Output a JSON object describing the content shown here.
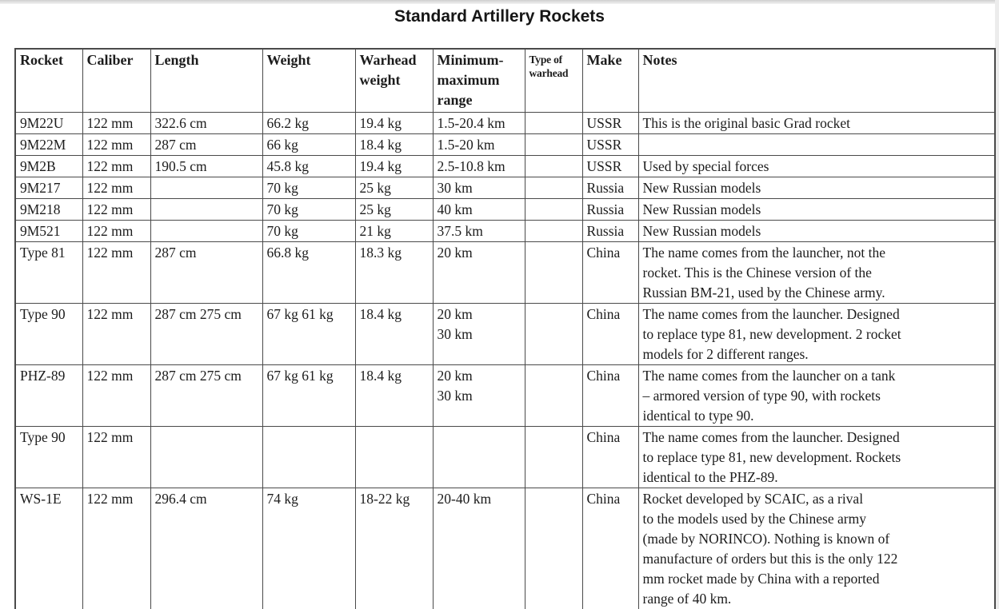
{
  "title": "Standard Artillery Rockets",
  "colors": {
    "border": "#4a4a4a",
    "text": "#1c1c1c",
    "page_edge": "#ececec"
  },
  "table": {
    "columns": [
      {
        "label": "Rocket"
      },
      {
        "label": "Caliber"
      },
      {
        "label": "Length"
      },
      {
        "label": "Weight"
      },
      {
        "label": "Warhead\nweight"
      },
      {
        "label": "Minimum-\nmaximum\nrange"
      },
      {
        "label": "Type of\nwarhead"
      },
      {
        "label": "Make"
      },
      {
        "label": "Notes"
      }
    ],
    "rows": [
      {
        "rocket": "9M22U",
        "caliber": "122 mm",
        "length": "322.6 cm",
        "weight": "66.2 kg",
        "warhead_weight": "19.4 kg",
        "range": "1.5-20.4 km",
        "warhead_type": "",
        "make": "USSR",
        "notes": "This is the original basic Grad rocket"
      },
      {
        "rocket": "9M22M",
        "caliber": "122 mm",
        "length": "287 cm",
        "weight": "66 kg",
        "warhead_weight": "18.4 kg",
        "range": "1.5-20 km",
        "warhead_type": "",
        "make": "USSR",
        "notes": ""
      },
      {
        "rocket": "9M2B",
        "caliber": "122 mm",
        "length": "190.5 cm",
        "weight": "45.8 kg",
        "warhead_weight": "19.4 kg",
        "range": "2.5-10.8 km",
        "warhead_type": "",
        "make": "USSR",
        "notes": "Used by special forces"
      },
      {
        "rocket": "9M217",
        "caliber": "122 mm",
        "length": "",
        "weight": "70 kg",
        "warhead_weight": "25 kg",
        "range": "30 km",
        "warhead_type": "",
        "make": "Russia",
        "notes": "New Russian models"
      },
      {
        "rocket": "9M218",
        "caliber": "122 mm",
        "length": "",
        "weight": "70 kg",
        "warhead_weight": "25 kg",
        "range": "40 km",
        "warhead_type": "",
        "make": "Russia",
        "notes": "New Russian models"
      },
      {
        "rocket": "9M521",
        "caliber": "122 mm",
        "length": "",
        "weight": "70 kg",
        "warhead_weight": "21 kg",
        "range": "37.5 km",
        "warhead_type": "",
        "make": "Russia",
        "notes": "New Russian models"
      },
      {
        "rocket": "Type 81",
        "caliber": "122 mm",
        "length": "287 cm",
        "weight": "66.8 kg",
        "warhead_weight": "18.3 kg",
        "range": "20 km",
        "warhead_type": "",
        "make": "China",
        "notes": "The name comes from the launcher, not the\nrocket. This is the Chinese version of the\nRussian BM-21, used by the Chinese army."
      },
      {
        "rocket": "Type 90",
        "caliber": "122 mm",
        "length": "287 cm 275 cm",
        "weight": "67 kg 61 kg",
        "warhead_weight": "18.4 kg",
        "range": "20 km\n30 km",
        "warhead_type": "",
        "make": "China",
        "notes": "The name comes from the launcher. Designed\nto replace type 81, new development. 2 rocket\nmodels for 2 different ranges."
      },
      {
        "rocket": "PHZ-89",
        "caliber": "122 mm",
        "length": "287 cm 275 cm",
        "weight": "67 kg 61 kg",
        "warhead_weight": "18.4 kg",
        "range": "20 km\n30 km",
        "warhead_type": "",
        "make": "China",
        "notes": "The name comes from the launcher on a tank\n– armored version of type 90, with rockets\nidentical to type 90."
      },
      {
        "rocket": "Type 90",
        "caliber": "122 mm",
        "length": "",
        "weight": "",
        "warhead_weight": "",
        "range": "",
        "warhead_type": "",
        "make": "China",
        "notes": "The name comes from the launcher. Designed\nto replace type 81, new development. Rockets\nidentical to the PHZ-89."
      },
      {
        "rocket": "WS-1E",
        "caliber": "122 mm",
        "length": "296.4 cm",
        "weight": "74 kg",
        "warhead_weight": "18-22 kg",
        "range": "20-40 km",
        "warhead_type": "",
        "make": "China",
        "notes": "Rocket developed by SCAIC, as a rival\nto the models used by the Chinese army\n(made by NORINCO). Nothing is known of\nmanufacture of orders but this is the only 122\nmm rocket made by China with a reported\nrange of 40 km."
      }
    ]
  }
}
